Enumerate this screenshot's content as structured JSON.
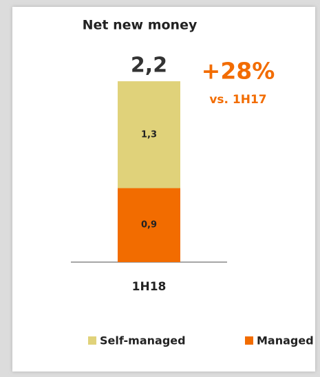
{
  "chart_data": {
    "type": "stacked_bar",
    "title": "Net new money",
    "categories": [
      "1H18"
    ],
    "series": [
      {
        "name": "Managed",
        "color": "#f26c00",
        "values": [
          0.9
        ],
        "value_labels": [
          "0,9"
        ]
      },
      {
        "name": "Self-managed",
        "color": "#e0d27a",
        "values": [
          1.3
        ],
        "value_labels": [
          "1,3"
        ]
      }
    ],
    "totals": [
      2.2
    ],
    "total_labels": [
      "2,2"
    ],
    "annotations": [
      "+28%",
      "vs. 1H17"
    ],
    "annotation_color": "#f26c00",
    "legend": "bottom"
  }
}
